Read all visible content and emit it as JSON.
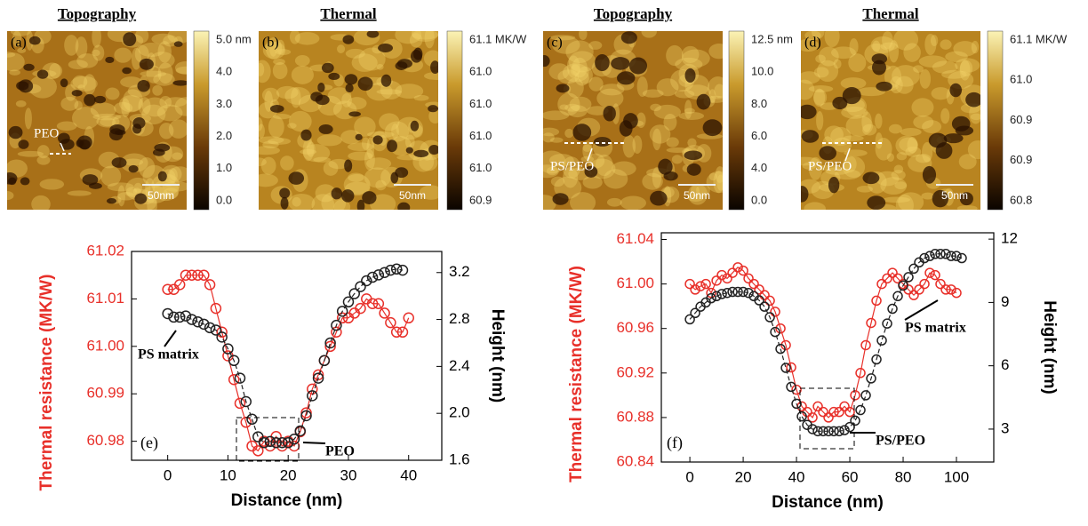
{
  "panels": [
    {
      "title": "Topography",
      "label": "(a)",
      "colorbar_labels": [
        "5.0 nm",
        "4.0",
        "3.0",
        "2.0",
        "1.0",
        "0.0"
      ],
      "scale_bar": "50nm",
      "annotation": "PEO"
    },
    {
      "title": "Thermal",
      "label": "(b)",
      "colorbar_labels": [
        "61.1 MK/W",
        "61.0",
        "61.0",
        "61.0",
        "61.0",
        "60.9"
      ],
      "scale_bar": "50nm"
    },
    {
      "title": "Topography",
      "label": "(c)",
      "colorbar_labels": [
        "12.5 nm",
        "10.0",
        "8.0",
        "6.0",
        "4.0",
        "0.0"
      ],
      "scale_bar": "50nm",
      "annotation": "PS/PEO"
    },
    {
      "title": "Thermal",
      "label": "(d)",
      "colorbar_labels": [
        "61.1 MK/W",
        "61.0",
        "60.9",
        "60.9",
        "60.8"
      ],
      "scale_bar": "50nm",
      "annotation": "PS/PEO"
    }
  ],
  "chart_data": [
    {
      "type": "line",
      "panel_label": "(e)",
      "x_label": "Distance (nm)",
      "y_label": "Thermal resistance (MK/W)",
      "y2_label": "Height (nm)",
      "annotations": [
        "PS matrix",
        "PEO"
      ],
      "xlim": [
        -6,
        45.5
      ],
      "xticks": [
        0,
        10,
        20,
        30,
        40
      ],
      "ylim": [
        60.976,
        61.02
      ],
      "yticks": [
        60.98,
        60.99,
        {
          "value": 61,
          "label": "61.00"
        },
        61.01,
        61.02
      ],
      "y2lim": [
        1.6,
        3.38
      ],
      "y2ticks": [
        1.6,
        {
          "value": 2,
          "label": "2.0"
        },
        2.4,
        2.8,
        3.2
      ],
      "series": [
        {
          "color": "#e8302a",
          "x": [
            0,
            1,
            2,
            3,
            4,
            5,
            6,
            7,
            8,
            9,
            10,
            11,
            12,
            13,
            14,
            15,
            16,
            17,
            18,
            19,
            20,
            21,
            22,
            23,
            24,
            25,
            26,
            27,
            28,
            29,
            30,
            31,
            32,
            33,
            34,
            35,
            36,
            37,
            38,
            39,
            40
          ],
          "values": [
            61.012,
            61.012,
            61.013,
            61.015,
            61.015,
            61.015,
            61.015,
            61.013,
            61.008,
            61.003,
            60.998,
            60.993,
            60.988,
            60.984,
            60.979,
            60.978,
            60.98,
            60.979,
            60.981,
            60.979,
            60.98,
            60.979,
            60.982,
            60.986,
            60.991,
            60.994,
            60.997,
            61.0,
            61.003,
            61.006,
            61.006,
            61.007,
            61.008,
            61.01,
            61.009,
            61.009,
            61.007,
            61.005,
            61.003,
            61.003,
            61.006
          ]
        },
        {
          "color": "#222222",
          "axis": "y2",
          "x": [
            0,
            1,
            2,
            3,
            4,
            5,
            6,
            7,
            8,
            9,
            10,
            11,
            12,
            13,
            14,
            15,
            16,
            17,
            18,
            19,
            20,
            21,
            22,
            23,
            24,
            25,
            26,
            27,
            28,
            29,
            30,
            31,
            32,
            33,
            34,
            35,
            36,
            37,
            38,
            39
          ],
          "values": [
            2.85,
            2.82,
            2.82,
            2.83,
            2.8,
            2.78,
            2.76,
            2.73,
            2.71,
            2.65,
            2.55,
            2.45,
            2.3,
            2.1,
            1.95,
            1.8,
            1.75,
            1.76,
            1.75,
            1.75,
            1.75,
            1.78,
            1.85,
            1.98,
            2.15,
            2.3,
            2.45,
            2.6,
            2.75,
            2.87,
            2.95,
            3.02,
            3.08,
            3.13,
            3.16,
            3.18,
            3.2,
            3.22,
            3.23,
            3.22
          ]
        }
      ]
    },
    {
      "type": "line",
      "panel_label": "(f)",
      "x_label": "Distance (nm)",
      "y_label": "Thermal resistance (MK/W)",
      "y2_label": "Height (nm)",
      "annotations": [
        "PS/PEO",
        "PS matrix"
      ],
      "xlim": [
        -10.7,
        114
      ],
      "xticks": [
        0,
        20,
        40,
        60,
        80,
        100
      ],
      "ylim": [
        60.84,
        61.046
      ],
      "yticks": [
        60.84,
        60.88,
        60.92,
        60.96,
        {
          "value": 61,
          "label": "61.00"
        },
        61.04
      ],
      "y2lim": [
        1.44,
        12.3
      ],
      "y2ticks": [
        3,
        6,
        9,
        12
      ],
      "series": [
        {
          "color": "#e8302a",
          "x": [
            0,
            2,
            4,
            6,
            8,
            10,
            12,
            14,
            16,
            18,
            20,
            22,
            24,
            26,
            28,
            30,
            32,
            34,
            36,
            38,
            40,
            42,
            44,
            46,
            48,
            50,
            52,
            54,
            56,
            58,
            60,
            62,
            64,
            66,
            68,
            70,
            72,
            74,
            76,
            78,
            80,
            82,
            84,
            86,
            88,
            90,
            92,
            94,
            96,
            98,
            100
          ],
          "values": [
            61.0,
            60.995,
            60.998,
            61.0,
            60.992,
            61.003,
            61.008,
            61.005,
            61.01,
            61.015,
            61.012,
            61.005,
            61.0,
            60.995,
            60.99,
            60.985,
            60.975,
            60.96,
            60.945,
            60.925,
            60.905,
            60.89,
            60.885,
            60.88,
            60.89,
            60.885,
            60.88,
            60.885,
            60.885,
            60.89,
            60.885,
            60.9,
            60.92,
            60.945,
            60.965,
            60.985,
            61.0,
            61.005,
            61.01,
            61.005,
            61.0,
            60.995,
            60.99,
            60.995,
            61.0,
            61.01,
            61.008,
            61.0,
            60.995,
            60.995,
            60.992
          ]
        },
        {
          "color": "#222222",
          "axis": "y2",
          "x": [
            0,
            2,
            4,
            6,
            8,
            10,
            12,
            14,
            16,
            18,
            20,
            22,
            24,
            26,
            28,
            30,
            32,
            34,
            36,
            38,
            40,
            42,
            44,
            46,
            48,
            50,
            52,
            54,
            56,
            58,
            60,
            62,
            64,
            66,
            68,
            70,
            72,
            74,
            76,
            78,
            80,
            82,
            84,
            86,
            88,
            90,
            92,
            94,
            96,
            98,
            100,
            102
          ],
          "values": [
            8.2,
            8.5,
            8.8,
            9.0,
            9.2,
            9.3,
            9.4,
            9.45,
            9.5,
            9.5,
            9.5,
            9.45,
            9.3,
            9.1,
            8.8,
            8.3,
            7.6,
            6.8,
            5.9,
            5.0,
            4.2,
            3.6,
            3.2,
            3.0,
            2.9,
            2.9,
            2.9,
            2.9,
            2.9,
            2.95,
            3.1,
            3.4,
            3.9,
            4.6,
            5.4,
            6.3,
            7.2,
            8.0,
            8.7,
            9.3,
            9.8,
            10.2,
            10.6,
            10.9,
            11.1,
            11.2,
            11.3,
            11.3,
            11.3,
            11.2,
            11.2,
            11.1
          ]
        }
      ]
    }
  ]
}
